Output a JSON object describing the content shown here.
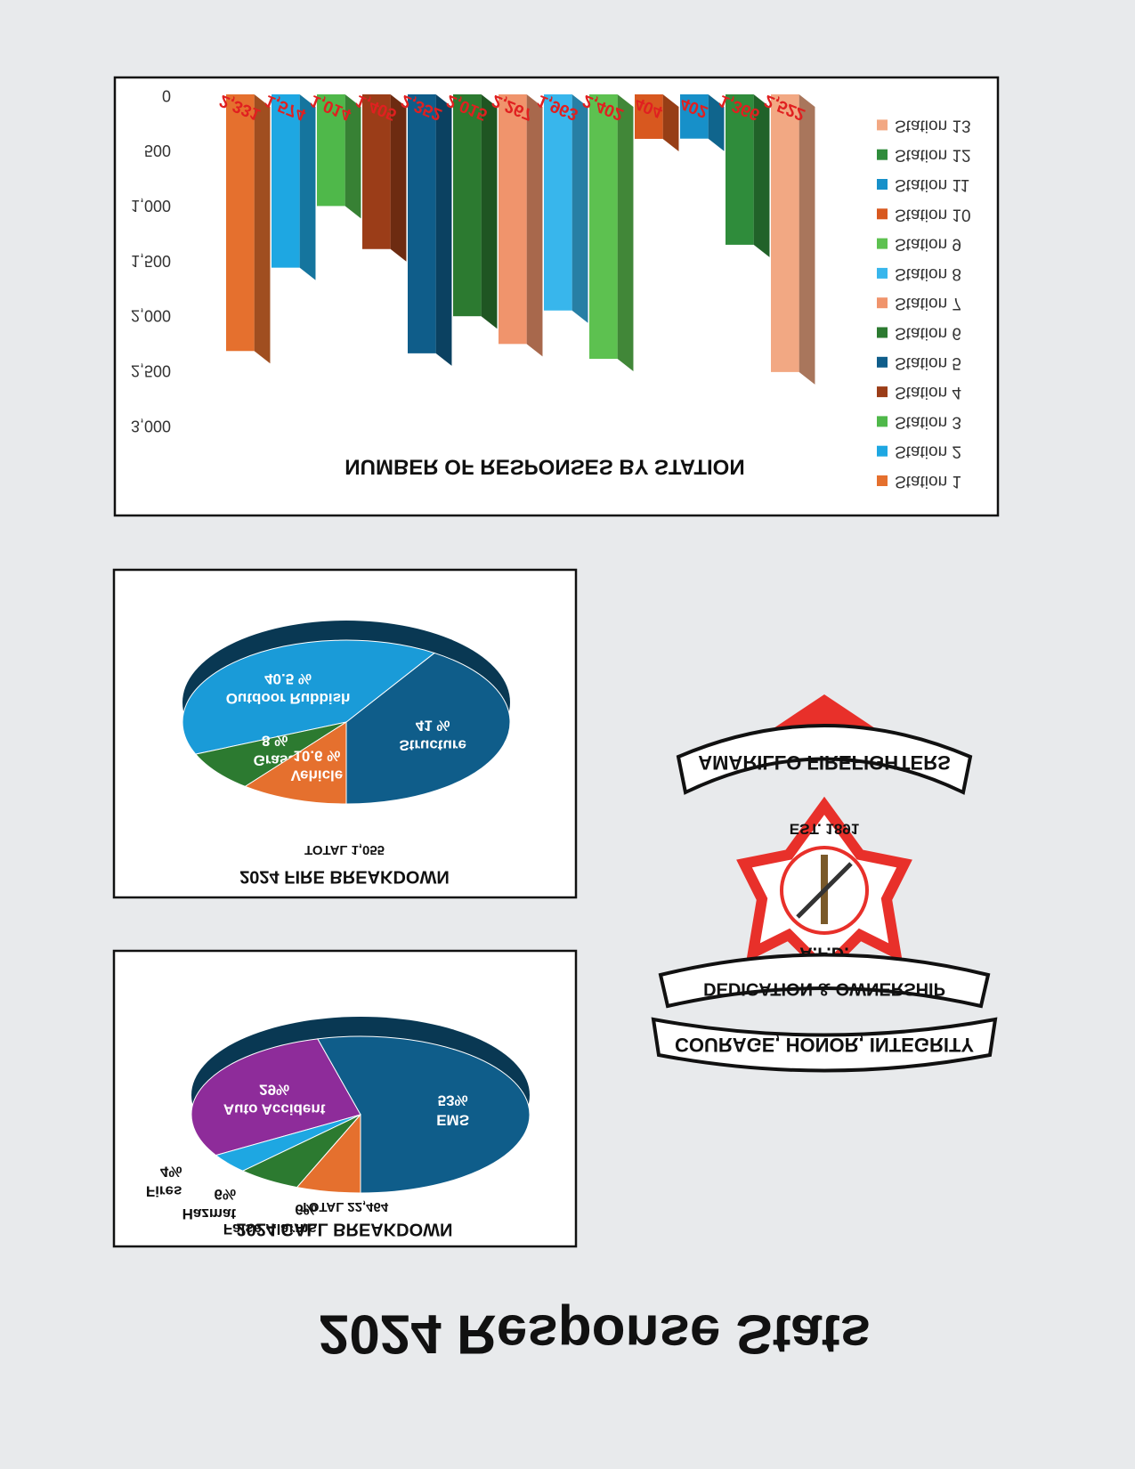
{
  "page_title": "2024 Response Stats",
  "chart_data": [
    {
      "type": "bar",
      "title": "NUMBER OF RESPONSES BY STATION",
      "categories": [
        "Station 1",
        "Station 2",
        "Station 3",
        "Station 4",
        "Station 5",
        "Station 6",
        "Station 7",
        "Station 8",
        "Station 9",
        "Station 10",
        "Station 11",
        "Station 12",
        "Station 13"
      ],
      "values": [
        2331,
        1574,
        1014,
        1405,
        2352,
        2015,
        2267,
        1963,
        2402,
        404,
        402,
        1366,
        2522
      ],
      "value_labels": [
        "2,331",
        "1,574",
        "1,014",
        "1,405",
        "2,352",
        "2,015",
        "2,267",
        "1,963",
        "2,402",
        "404",
        "402",
        "1,366",
        "2,522"
      ],
      "colors": [
        "#e5702e",
        "#1ea7e2",
        "#4fb84a",
        "#9b3d18",
        "#0f5d8a",
        "#2c7a30",
        "#f0946c",
        "#38b6ec",
        "#5dc150",
        "#d8581f",
        "#1790c9",
        "#2f8c3b",
        "#f2a883"
      ],
      "ylim": [
        0,
        3000
      ],
      "yticks": [
        0,
        500,
        {
          "value": 1000,
          "label": "1,000"
        },
        {
          "value": 1500,
          "label": "1,500"
        },
        {
          "value": 2000,
          "label": "2,000"
        },
        {
          "value": 2500,
          "label": "2,500"
        },
        {
          "value": 3000,
          "label": "3,000"
        }
      ],
      "legend": "right"
    },
    {
      "type": "pie",
      "title": "2024 FIRE BREAKDOWN",
      "subtitle": "TOTAL 1,055",
      "categories": [
        "Structure",
        "Outdoor Rubbish",
        "Grass",
        "Vehicle"
      ],
      "values": [
        41,
        40.5,
        8,
        10.6
      ],
      "value_labels": [
        "41 %",
        "40.5 %",
        "8 %",
        "10.6 %"
      ],
      "colors": [
        "#0f5d8a",
        "#1a9bd8",
        "#2c7a30",
        "#e5702e"
      ]
    },
    {
      "type": "pie",
      "title": "2024 CALL BREAKDOWN",
      "subtitle": "TOTAL 22,464",
      "categories": [
        "EMS",
        "Auto Accident",
        "Fires",
        "Hazmat",
        "False Alarms"
      ],
      "values": [
        53,
        29,
        4,
        6,
        6
      ],
      "value_labels": [
        "53%",
        "29%",
        "4%",
        "6%",
        "6%"
      ],
      "colors": [
        "#0f5d8a",
        "#8e2c9a",
        "#1ea7e2",
        "#2c7a30",
        "#e5702e"
      ]
    }
  ],
  "logo": {
    "top": "AMARILLO FIREFIGHTERS",
    "est": "EST. 1891",
    "center": "A.F.D.",
    "banner1": "DEDICATION & OWNERSHIP",
    "banner2": "COURAGE, HONOR, INTEGRITY"
  }
}
